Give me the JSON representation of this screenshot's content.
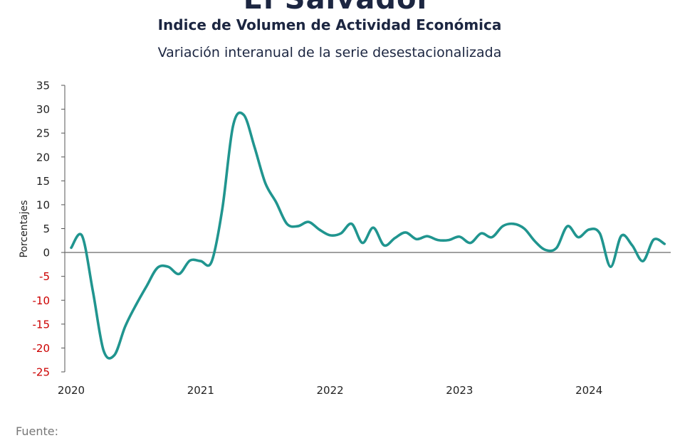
{
  "header": {
    "country": "El Salvador",
    "title": "Indice de Volumen de  Actividad Económica",
    "subtitle": "Variación interanual de la serie desestacionalizada"
  },
  "footer": {
    "source_label": "Fuente:"
  },
  "colors": {
    "line": "#20958f",
    "negative_tick": "#cc0000",
    "text": "#1c2641"
  },
  "chart_data": {
    "type": "line",
    "title": "Indice de Volumen de  Actividad Económica",
    "subtitle": "Variación interanual de la serie desestacionalizada",
    "xlabel": "",
    "ylabel": "Porcentajes",
    "ylim": [
      -25,
      35
    ],
    "yticks": [
      35,
      30,
      25,
      20,
      15,
      10,
      5,
      0,
      -5,
      -10,
      -15,
      -20,
      -25
    ],
    "xticks": [
      "2020",
      "2021",
      "2022",
      "2023",
      "2024"
    ],
    "xlim": [
      "2020-01",
      "2024-08"
    ],
    "grid": false,
    "legend": "none",
    "series": [
      {
        "x": [
          "2020-01",
          "2020-02",
          "2020-03",
          "2020-04",
          "2020-05",
          "2020-06",
          "2020-07",
          "2020-08",
          "2020-09",
          "2020-10",
          "2020-11",
          "2020-12",
          "2021-01",
          "2021-02",
          "2021-03",
          "2021-04",
          "2021-05",
          "2021-06",
          "2021-07",
          "2021-08",
          "2021-09",
          "2021-10",
          "2021-11",
          "2021-12",
          "2022-01",
          "2022-02",
          "2022-03",
          "2022-04",
          "2022-05",
          "2022-06",
          "2022-07",
          "2022-08",
          "2022-09",
          "2022-10",
          "2022-11",
          "2022-12",
          "2023-01",
          "2023-02",
          "2023-03",
          "2023-04",
          "2023-05",
          "2023-06",
          "2023-07",
          "2023-08",
          "2023-09",
          "2023-10",
          "2023-11",
          "2023-12",
          "2024-01",
          "2024-02",
          "2024-03",
          "2024-04",
          "2024-05",
          "2024-06",
          "2024-07",
          "2024-08"
        ],
        "values": [
          1.0,
          3.5,
          -8.0,
          -20.5,
          -21.5,
          -15.5,
          -11.0,
          -7.0,
          -3.2,
          -3.0,
          -4.5,
          -1.7,
          -1.8,
          -2.0,
          9.0,
          26.5,
          28.8,
          22.0,
          14.5,
          10.5,
          6.0,
          5.5,
          6.4,
          4.8,
          3.6,
          4.0,
          6.0,
          2.0,
          5.2,
          1.5,
          3.0,
          4.2,
          2.8,
          3.4,
          2.6,
          2.6,
          3.3,
          2.0,
          4.0,
          3.2,
          5.5,
          6.0,
          5.0,
          2.3,
          0.5,
          1.0,
          5.5,
          3.2,
          4.8,
          4.0,
          -3.0,
          3.5,
          1.5,
          -1.8,
          2.7,
          1.8
        ]
      }
    ]
  }
}
